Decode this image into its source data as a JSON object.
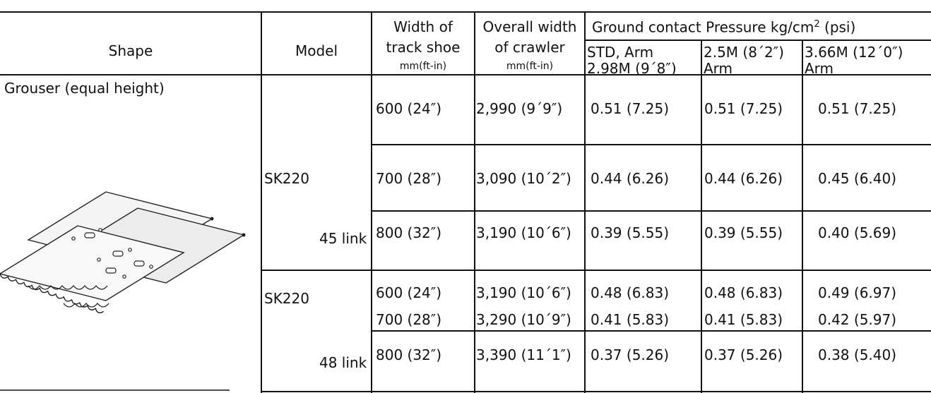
{
  "header": {
    "shape": "Shape",
    "model": "Model",
    "width_line1": "Width of",
    "width_line2": "track shoe",
    "width_unit": "mm(ft-in)",
    "overall_line1": "Overall width",
    "overall_line2": "of crawler",
    "overall_unit": "mm(ft-in)",
    "pressure_prefix": "Ground contact Pressure kg/cm",
    "pressure_sup": "2",
    "pressure_suffix": "(psi)",
    "std_line1": "STD, Arm",
    "std_line2": "2.98M (9´8″)",
    "arm25_line1": "2.5M (8´2″)",
    "arm25_line2": "Arm",
    "arm366_line1": "3.66M (12´0″)",
    "arm366_line2": "Arm"
  },
  "shape_label": "Grouser (equal height)",
  "groups": [
    {
      "model": "SK220",
      "link": "45 link"
    },
    {
      "model": "SK220",
      "link": "48 link"
    }
  ],
  "rows": [
    {
      "width": "600 (24″)",
      "overall": "2,990 (9´9″)",
      "std": "0.51 (7.25)",
      "arm25": "0.51 (7.25)",
      "arm366": "0.51 (7.25)"
    },
    {
      "width": "700 (28″)",
      "overall": "3,090 (10´2″)",
      "std": "0.44 (6.26)",
      "arm25": "0.44 (6.26)",
      "arm366": "0.45 (6.40)"
    },
    {
      "width": "800 (32″)",
      "overall": "3,190 (10´6″)",
      "std": "0.39 (5.55)",
      "arm25": "0.39 (5.55)",
      "arm366": "0.40 (5.69)"
    },
    {
      "width": "600 (24″)",
      "overall": "3,190 (10´6″)",
      "std": "0.48 (6.83)",
      "arm25": "0.48 (6.83)",
      "arm366": "0.49 (6.97)"
    },
    {
      "width": "700 (28″)",
      "overall": "3,290 (10´9″)",
      "std": "0.41 (5.83)",
      "arm25": "0.41 (5.83)",
      "arm366": "0.42 (5.97)"
    },
    {
      "width": "800 (32″)",
      "overall": "3,390 (11´1″)",
      "std": "0.37 (5.26)",
      "arm25": "0.37 (5.26)",
      "arm366": "0.38 (5.40)"
    }
  ]
}
